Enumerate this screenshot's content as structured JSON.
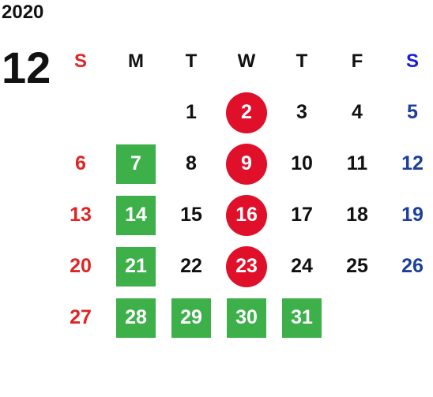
{
  "calendar": {
    "year": "2020",
    "month": "12",
    "weekdays": [
      "S",
      "M",
      "T",
      "W",
      "T",
      "F",
      "S"
    ],
    "colors": {
      "sunday": "#e02424",
      "saturday": "#1c3f9a",
      "green_highlight": "#3db04a",
      "red_highlight": "#e0102a"
    },
    "weeks": [
      [
        {
          "day": "",
          "style": "plain"
        },
        {
          "day": "",
          "style": "plain"
        },
        {
          "day": "1",
          "style": "plain"
        },
        {
          "day": "2",
          "style": "red-circle"
        },
        {
          "day": "3",
          "style": "plain"
        },
        {
          "day": "4",
          "style": "plain"
        },
        {
          "day": "5",
          "style": "plain"
        }
      ],
      [
        {
          "day": "6",
          "style": "plain"
        },
        {
          "day": "7",
          "style": "green-square"
        },
        {
          "day": "8",
          "style": "plain"
        },
        {
          "day": "9",
          "style": "red-circle"
        },
        {
          "day": "10",
          "style": "plain"
        },
        {
          "day": "11",
          "style": "plain"
        },
        {
          "day": "12",
          "style": "plain"
        }
      ],
      [
        {
          "day": "13",
          "style": "plain"
        },
        {
          "day": "14",
          "style": "green-square"
        },
        {
          "day": "15",
          "style": "plain"
        },
        {
          "day": "16",
          "style": "red-circle"
        },
        {
          "day": "17",
          "style": "plain"
        },
        {
          "day": "18",
          "style": "plain"
        },
        {
          "day": "19",
          "style": "plain"
        }
      ],
      [
        {
          "day": "20",
          "style": "plain"
        },
        {
          "day": "21",
          "style": "green-square"
        },
        {
          "day": "22",
          "style": "plain"
        },
        {
          "day": "23",
          "style": "red-circle"
        },
        {
          "day": "24",
          "style": "plain"
        },
        {
          "day": "25",
          "style": "plain"
        },
        {
          "day": "26",
          "style": "plain"
        }
      ],
      [
        {
          "day": "27",
          "style": "plain"
        },
        {
          "day": "28",
          "style": "green-square"
        },
        {
          "day": "29",
          "style": "green-square"
        },
        {
          "day": "30",
          "style": "green-square"
        },
        {
          "day": "31",
          "style": "green-square"
        },
        {
          "day": "",
          "style": "plain"
        },
        {
          "day": "",
          "style": "plain"
        }
      ]
    ]
  }
}
